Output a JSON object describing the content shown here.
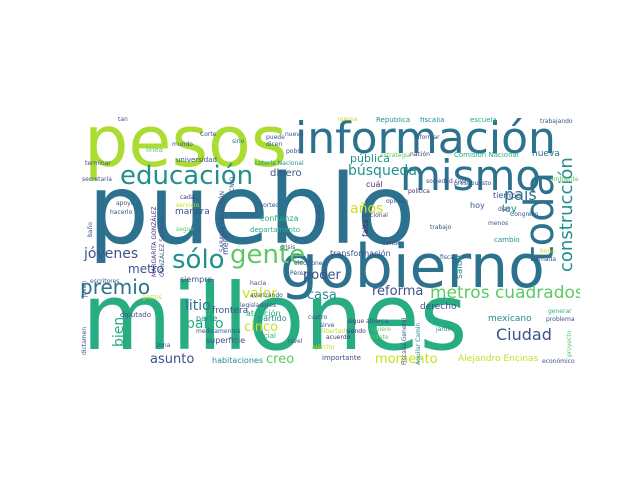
{
  "palette": {
    "purple": "#472c7a",
    "blue": "#3b528b",
    "teal": "#2c728e",
    "cyan": "#21908d",
    "green": "#27ad81",
    "lime": "#5dc963",
    "yellowgreen": "#aadc32",
    "yellow": "#c8e020"
  },
  "words": [
    {
      "text": "pueblo",
      "color": "teal"
    },
    {
      "text": "millones",
      "color": "green"
    },
    {
      "text": "pesos",
      "color": "yellowgreen"
    },
    {
      "text": "gobierno",
      "color": "teal"
    },
    {
      "text": "información",
      "color": "teal"
    },
    {
      "text": "mismo",
      "color": "teal"
    },
    {
      "text": "toda",
      "color": "teal"
    },
    {
      "text": "educación",
      "color": "cyan"
    },
    {
      "text": "gente",
      "color": "lime"
    },
    {
      "text": "sólo",
      "color": "cyan"
    },
    {
      "text": "premio",
      "color": "teal"
    },
    {
      "text": "metros cuadrados",
      "color": "lime"
    },
    {
      "text": "construcción",
      "color": "cyan"
    },
    {
      "text": "búsqueda",
      "color": "cyan"
    },
    {
      "text": "jóvenes",
      "color": "blue"
    },
    {
      "text": "país",
      "color": "teal"
    },
    {
      "text": "bien",
      "color": "green"
    },
    {
      "text": "Ciudad",
      "color": "blue"
    },
    {
      "text": "años",
      "color": "yellow"
    },
    {
      "text": "valor",
      "color": "yellow"
    },
    {
      "text": "litio",
      "color": "teal"
    },
    {
      "text": "palco",
      "color": "green"
    },
    {
      "text": "cinco",
      "color": "yellow"
    },
    {
      "text": "reforma",
      "color": "blue"
    },
    {
      "text": "poder",
      "color": "blue"
    },
    {
      "text": "casa",
      "color": "cyan"
    },
    {
      "text": "creo",
      "color": "lime"
    },
    {
      "text": "momento",
      "color": "yellow"
    },
    {
      "text": "asunto",
      "color": "blue"
    },
    {
      "text": "metro",
      "color": "blue"
    },
    {
      "text": "pública",
      "color": "cyan"
    },
    {
      "text": "dinero",
      "color": "blue"
    },
    {
      "text": "Alejandro Encinas",
      "color": "yellow"
    },
    {
      "text": "nueva",
      "color": "teal"
    },
    {
      "text": "salud",
      "color": "cyan"
    },
    {
      "text": "ley",
      "color": "cyan"
    },
    {
      "text": "tiempo",
      "color": "blue"
    },
    {
      "text": "mexicano",
      "color": "cyan"
    },
    {
      "text": "derecho",
      "color": "blue"
    },
    {
      "text": "transformación",
      "color": "blue"
    },
    {
      "text": "confianza",
      "color": "green"
    },
    {
      "text": "departamento",
      "color": "green"
    },
    {
      "text": "frontera",
      "color": "blue"
    },
    {
      "text": "atención",
      "color": "green"
    },
    {
      "text": "partido",
      "color": "cyan"
    },
    {
      "text": "social",
      "color": "green"
    },
    {
      "text": "superficie",
      "color": "blue"
    },
    {
      "text": "habitaciones",
      "color": "cyan"
    },
    {
      "text": "importante",
      "color": "blue"
    },
    {
      "text": "manera",
      "color": "blue"
    },
    {
      "text": "mejor",
      "color": "blue"
    },
    {
      "text": "siempre",
      "color": "blue"
    },
    {
      "text": "parte",
      "color": "cyan"
    },
    {
      "text": "diputado",
      "color": "blue"
    },
    {
      "text": "cambio",
      "color": "cyan"
    },
    {
      "text": "hoy",
      "color": "blue"
    },
    {
      "text": "falta",
      "color": "purple"
    },
    {
      "text": "cuál",
      "color": "purple"
    },
    {
      "text": "universidad",
      "color": "blue"
    },
    {
      "text": "escuela",
      "color": "green"
    },
    {
      "text": "República",
      "color": "cyan"
    },
    {
      "text": "fiscalía",
      "color": "cyan"
    },
    {
      "text": "trabajando",
      "color": "blue"
    },
    {
      "text": "Comisión Nacional",
      "color": "green"
    },
    {
      "text": "Lotería Nacional",
      "color": "cyan"
    },
    {
      "text": "línea",
      "color": "lime"
    },
    {
      "text": "nación",
      "color": "purple"
    },
    {
      "text": "dicen",
      "color": "blue"
    },
    {
      "text": "puede",
      "color": "blue"
    },
    {
      "text": "sino",
      "color": "teal"
    },
    {
      "text": "Corte",
      "color": "blue"
    },
    {
      "text": "mundo",
      "color": "blue"
    },
    {
      "text": "nuevo",
      "color": "blue"
    },
    {
      "text": "tan",
      "color": "blue"
    },
    {
      "text": "terminar",
      "color": "blue"
    },
    {
      "text": "secretaría",
      "color": "blue"
    },
    {
      "text": "apoyo",
      "color": "blue"
    },
    {
      "text": "hacerlo",
      "color": "blue"
    },
    {
      "text": "baño",
      "color": "blue"
    },
    {
      "text": "cada",
      "color": "purple"
    },
    {
      "text": "sorteo",
      "color": "blue"
    },
    {
      "text": "seguir",
      "color": "lime"
    },
    {
      "text": "servicio",
      "color": "yellow"
    },
    {
      "text": "gastos",
      "color": "yellow"
    },
    {
      "text": "MARGARITA GONZÁLEZ",
      "color": "purple"
    },
    {
      "text": "GONZÁLEZ SARAVIA",
      "color": "blue"
    },
    {
      "text": "SARAVIA CALDERÓN",
      "color": "blue"
    },
    {
      "text": "CNIO",
      "color": "blue"
    },
    {
      "text": "cuatro",
      "color": "blue"
    },
    {
      "text": "política",
      "color": "purple"
    },
    {
      "text": "pobre",
      "color": "blue"
    },
    {
      "text": "opinión",
      "color": "blue"
    },
    {
      "text": "trabajo",
      "color": "blue"
    },
    {
      "text": "Congreso",
      "color": "blue"
    },
    {
      "text": "fiscal",
      "color": "blue"
    },
    {
      "text": "escritores",
      "color": "blue"
    },
    {
      "text": "llamada",
      "color": "blue"
    },
    {
      "text": "elecciones",
      "color": "blue"
    },
    {
      "text": "legisladores",
      "color": "blue"
    },
    {
      "text": "avanzando",
      "color": "blue"
    },
    {
      "text": "acuerdo",
      "color": "purple"
    },
    {
      "text": "sigue",
      "color": "purple"
    },
    {
      "text": "siendo",
      "color": "purple"
    },
    {
      "text": "alberca",
      "color": "blue"
    },
    {
      "text": "quiere",
      "color": "lime"
    },
    {
      "text": "jardín",
      "color": "cyan"
    },
    {
      "text": "Aguilar Camín",
      "color": "cyan"
    },
    {
      "text": "Fiscalía General",
      "color": "blue"
    },
    {
      "text": "nivel",
      "color": "blue"
    },
    {
      "text": "medicamentos",
      "color": "blue"
    },
    {
      "text": "zona",
      "color": "blue"
    },
    {
      "text": "sirve",
      "color": "blue"
    },
    {
      "text": "económico",
      "color": "blue"
    },
    {
      "text": "proyecto",
      "color": "lime"
    },
    {
      "text": "generar",
      "color": "green"
    },
    {
      "text": "problema",
      "color": "blue"
    },
    {
      "text": "presupuesto",
      "color": "blue"
    },
    {
      "text": "Nacional",
      "color": "blue"
    },
    {
      "text": "donde",
      "color": "blue"
    },
    {
      "text": "estudio",
      "color": "blue"
    },
    {
      "text": "sociedad civil",
      "color": "blue"
    },
    {
      "text": "informar",
      "color": "blue"
    },
    {
      "text": "estrategia",
      "color": "lime"
    },
    {
      "text": "billete",
      "color": "lime"
    },
    {
      "text": "ejército",
      "color": "yellow"
    },
    {
      "text": "hacia",
      "color": "blue"
    },
    {
      "text": "crisis",
      "color": "blue"
    },
    {
      "text": "libertad",
      "color": "yellow"
    },
    {
      "text": "ambiente",
      "color": "lime"
    },
    {
      "text": "bono",
      "color": "yellow"
    },
    {
      "text": "menos",
      "color": "blue"
    },
    {
      "text": "Pérez",
      "color": "blue"
    },
    {
      "text": "iglesia",
      "color": "yellow"
    },
    {
      "text": "días",
      "color": "blue"
    },
    {
      "text": "joven",
      "color": "blue"
    },
    {
      "text": "dictamen",
      "color": "blue"
    }
  ]
}
